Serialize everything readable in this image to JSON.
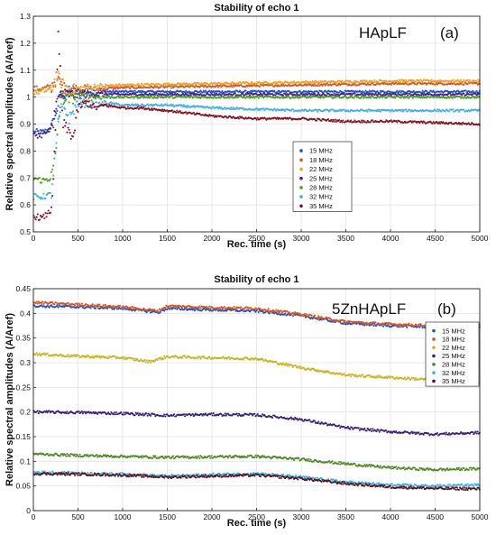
{
  "chart_data": [
    {
      "type": "scatter",
      "title": "Stability of echo 1",
      "xlabel": "Rec. time (s)",
      "ylabel": "Relative spectral amplitudes (A/Aref)",
      "xlim": [
        0,
        5000
      ],
      "ylim": [
        0.5,
        1.3
      ],
      "xticks": [
        0,
        500,
        1000,
        1500,
        2000,
        2500,
        3000,
        3500,
        4000,
        4500,
        5000
      ],
      "yticks": [
        0.5,
        0.6,
        0.7,
        0.8,
        0.9,
        1,
        1.1,
        1.2,
        1.3
      ],
      "ytick_labels": [
        "0.5",
        "0.6",
        "0.7",
        "0.8",
        "0.9",
        "1",
        "1.1",
        "1.2",
        "1.3"
      ],
      "grid": true,
      "legend_position": "center-right",
      "annotations": [
        "HApLF",
        "(a)"
      ],
      "series": [
        {
          "name": "15 MHz",
          "color": "#1f4fd1",
          "x": [
            0,
            100,
            200,
            260,
            300,
            350,
            400,
            500,
            700,
            1000,
            2000,
            3000,
            4000,
            5000
          ],
          "y": [
            0.87,
            0.87,
            0.88,
            0.95,
            1.0,
            1.01,
            1.02,
            1.02,
            1.02,
            1.02,
            1.02,
            1.02,
            1.02,
            1.02
          ]
        },
        {
          "name": "18 MHz",
          "color": "#d95319",
          "x": [
            0,
            100,
            200,
            260,
            300,
            350,
            400,
            500,
            700,
            1000,
            2000,
            3000,
            4000,
            5000
          ],
          "y": [
            1.03,
            1.03,
            1.04,
            1.07,
            1.05,
            1.03,
            1.03,
            1.03,
            1.03,
            1.035,
            1.04,
            1.045,
            1.05,
            1.05
          ]
        },
        {
          "name": "22 MHz",
          "color": "#f0a020",
          "x": [
            0,
            100,
            200,
            260,
            300,
            350,
            400,
            500,
            700,
            1000,
            2000,
            3000,
            4000,
            5000
          ],
          "y": [
            1.02,
            1.02,
            1.03,
            1.08,
            1.06,
            1.04,
            1.03,
            1.03,
            1.04,
            1.045,
            1.05,
            1.055,
            1.06,
            1.06
          ]
        },
        {
          "name": "25 MHz",
          "color": "#4a1f8c",
          "x": [
            0,
            100,
            200,
            260,
            300,
            350,
            400,
            500,
            700,
            1000,
            2000,
            3000,
            4000,
            5000
          ],
          "y": [
            0.86,
            0.86,
            0.88,
            0.98,
            1.0,
            1.01,
            1.01,
            1.01,
            1.01,
            1.01,
            1.01,
            1.01,
            1.01,
            1.01
          ]
        },
        {
          "name": "28 MHz",
          "color": "#4a9a1f",
          "x": [
            0,
            100,
            200,
            250,
            280,
            320,
            400,
            500,
            700,
            1000,
            2000,
            3000,
            4000,
            5000
          ],
          "y": [
            0.7,
            0.69,
            0.7,
            0.78,
            0.92,
            1.0,
            0.99,
            1.0,
            1.0,
            1.0,
            1.0,
            1.0,
            1.0,
            1.0
          ]
        },
        {
          "name": "32 MHz",
          "color": "#3ab0e8",
          "x": [
            0,
            100,
            200,
            250,
            300,
            350,
            400,
            500,
            700,
            800,
            1000,
            1500,
            2000,
            2500,
            3000,
            4000,
            5000
          ],
          "y": [
            0.63,
            0.63,
            0.64,
            0.8,
            0.95,
            0.96,
            0.92,
            0.98,
            0.97,
            0.98,
            0.97,
            0.97,
            0.96,
            0.955,
            0.95,
            0.95,
            0.95
          ]
        },
        {
          "name": "35 MHz",
          "color": "#8b0e1a",
          "x": [
            0,
            100,
            200,
            240,
            260,
            280,
            300,
            330,
            380,
            450,
            500,
            600,
            700,
            800,
            1000,
            1200,
            1500,
            2000,
            2500,
            3000,
            3500,
            4000,
            4500,
            5000
          ],
          "y": [
            0.56,
            0.55,
            0.58,
            0.8,
            1.0,
            1.24,
            1.1,
            0.9,
            0.88,
            0.85,
            0.96,
            0.98,
            0.96,
            0.97,
            0.96,
            0.96,
            0.95,
            0.93,
            0.92,
            0.92,
            0.91,
            0.91,
            0.905,
            0.9
          ]
        }
      ]
    },
    {
      "type": "scatter",
      "title": "Stability of echo 1",
      "xlabel": "Rec. time (s)",
      "ylabel": "Relative spectral amplitudes (A/Aref)",
      "xlim": [
        0,
        5000
      ],
      "ylim": [
        0,
        0.45
      ],
      "xticks": [
        0,
        500,
        1000,
        1500,
        2000,
        2500,
        3000,
        3500,
        4000,
        4500,
        5000
      ],
      "yticks": [
        0,
        0.05,
        0.1,
        0.15,
        0.2,
        0.25,
        0.3,
        0.35,
        0.4,
        0.45
      ],
      "ytick_labels": [
        "0",
        "0.05",
        "0.1",
        "0.15",
        "0.2",
        "0.25",
        "0.3",
        "0.35",
        "0.4",
        "0.45"
      ],
      "grid": true,
      "legend_position": "right",
      "annotations": [
        "5ZnHApLF",
        "(b)"
      ],
      "series": [
        {
          "name": "15 MHz",
          "color": "#1f4fd1",
          "x": [
            0,
            500,
            1000,
            1400,
            1500,
            2000,
            2500,
            3000,
            3500,
            4000,
            4500,
            5000
          ],
          "y": [
            0.415,
            0.413,
            0.41,
            0.402,
            0.41,
            0.407,
            0.405,
            0.395,
            0.38,
            0.375,
            0.372,
            0.372
          ]
        },
        {
          "name": "18 MHz",
          "color": "#d95319",
          "x": [
            0,
            500,
            1000,
            1400,
            1500,
            2000,
            2500,
            3000,
            3500,
            4000,
            4500,
            5000
          ],
          "y": [
            0.422,
            0.418,
            0.413,
            0.405,
            0.415,
            0.412,
            0.41,
            0.398,
            0.383,
            0.378,
            0.375,
            0.375
          ]
        },
        {
          "name": "22 MHz",
          "color": "#c8b418",
          "x": [
            0,
            500,
            1000,
            1300,
            1500,
            2000,
            2500,
            3000,
            3500,
            4000,
            4500,
            5000
          ],
          "y": [
            0.318,
            0.313,
            0.31,
            0.302,
            0.312,
            0.31,
            0.308,
            0.29,
            0.275,
            0.27,
            0.265,
            0.262
          ]
        },
        {
          "name": "25 MHz",
          "color": "#3a1f7a",
          "x": [
            0,
            500,
            1000,
            1500,
            2000,
            2500,
            3000,
            3500,
            4000,
            4500,
            5000
          ],
          "y": [
            0.2,
            0.199,
            0.197,
            0.193,
            0.195,
            0.194,
            0.185,
            0.168,
            0.16,
            0.155,
            0.158
          ]
        },
        {
          "name": "28 MHz",
          "color": "#4a8a1f",
          "x": [
            0,
            500,
            1000,
            1500,
            2000,
            2500,
            3000,
            3500,
            4000,
            4500,
            5000
          ],
          "y": [
            0.115,
            0.112,
            0.11,
            0.108,
            0.109,
            0.11,
            0.104,
            0.095,
            0.087,
            0.083,
            0.085
          ]
        },
        {
          "name": "32 MHz",
          "color": "#3ab0e8",
          "x": [
            0,
            500,
            1000,
            1500,
            2000,
            2500,
            3000,
            3500,
            4000,
            4500,
            5000
          ],
          "y": [
            0.078,
            0.076,
            0.074,
            0.07,
            0.073,
            0.075,
            0.068,
            0.058,
            0.052,
            0.05,
            0.052
          ]
        },
        {
          "name": "35 MHz",
          "color": "#5a1218",
          "x": [
            0,
            500,
            1000,
            1500,
            2000,
            2500,
            3000,
            3500,
            4000,
            4500,
            5000
          ],
          "y": [
            0.075,
            0.074,
            0.072,
            0.068,
            0.07,
            0.072,
            0.065,
            0.055,
            0.048,
            0.045,
            0.044
          ]
        }
      ]
    }
  ]
}
